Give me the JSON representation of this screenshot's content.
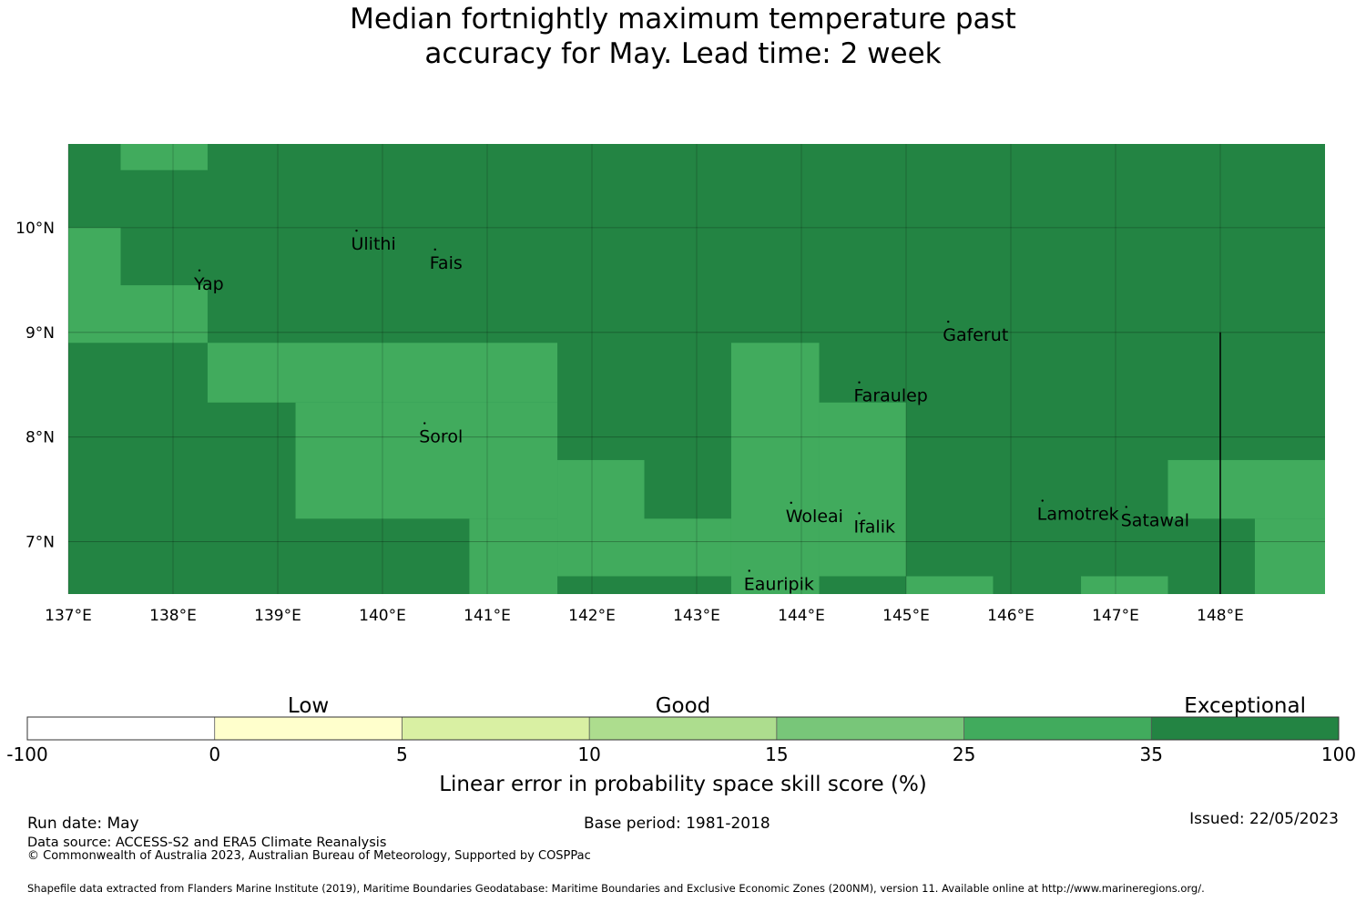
{
  "title_lines": [
    "Median fortnightly maximum temperature past",
    "accuracy for May. Lead time: 2 week"
  ],
  "map": {
    "lon_range": [
      137.0,
      149.0
    ],
    "lat_range": [
      6.5,
      10.8
    ],
    "lon_ticks": [
      {
        "value": 137,
        "label": "137°E"
      },
      {
        "value": 138,
        "label": "138°E"
      },
      {
        "value": 139,
        "label": "139°E"
      },
      {
        "value": 140,
        "label": "140°E"
      },
      {
        "value": 141,
        "label": "141°E"
      },
      {
        "value": 142,
        "label": "142°E"
      },
      {
        "value": 143,
        "label": "143°E"
      },
      {
        "value": 144,
        "label": "144°E"
      },
      {
        "value": 145,
        "label": "145°E"
      },
      {
        "value": 146,
        "label": "146°E"
      },
      {
        "value": 147,
        "label": "147°E"
      },
      {
        "value": 148,
        "label": "148°E"
      }
    ],
    "lat_ticks": [
      {
        "value": 7,
        "label": "7°N"
      },
      {
        "value": 8,
        "label": "8°N"
      },
      {
        "value": 9,
        "label": "9°N"
      },
      {
        "value": 10,
        "label": "10°N"
      }
    ],
    "grid_lines": true,
    "cells_note_classes": [
      "25-35",
      "35-100"
    ],
    "cells": [
      {
        "lon": [
          137.0,
          149.0
        ],
        "lat": [
          6.5,
          10.8
        ],
        "class": "35-100"
      },
      {
        "lon": [
          137.5,
          138.33
        ],
        "lat": [
          10.55,
          10.8
        ],
        "class": "25-35"
      },
      {
        "lon": [
          137.0,
          137.5
        ],
        "lat": [
          8.9,
          10.0
        ],
        "class": "25-35"
      },
      {
        "lon": [
          137.5,
          138.33
        ],
        "lat": [
          8.9,
          9.45
        ],
        "class": "25-35"
      },
      {
        "lon": [
          138.33,
          141.67
        ],
        "lat": [
          8.33,
          8.9
        ],
        "class": "25-35"
      },
      {
        "lon": [
          139.17,
          141.67
        ],
        "lat": [
          7.22,
          8.33
        ],
        "class": "25-35"
      },
      {
        "lon": [
          140.83,
          141.67
        ],
        "lat": [
          6.5,
          7.22
        ],
        "class": "25-35"
      },
      {
        "lon": [
          141.67,
          142.5
        ],
        "lat": [
          6.67,
          7.78
        ],
        "class": "25-35"
      },
      {
        "lon": [
          142.5,
          143.33
        ],
        "lat": [
          6.67,
          7.22
        ],
        "class": "25-35"
      },
      {
        "lon": [
          143.33,
          144.17
        ],
        "lat": [
          6.5,
          8.9
        ],
        "class": "25-35"
      },
      {
        "lon": [
          144.17,
          145.0
        ],
        "lat": [
          6.67,
          8.33
        ],
        "class": "25-35"
      },
      {
        "lon": [
          145.0,
          145.83
        ],
        "lat": [
          6.5,
          6.67
        ],
        "class": "25-35"
      },
      {
        "lon": [
          146.67,
          147.5
        ],
        "lat": [
          6.5,
          6.67
        ],
        "class": "25-35"
      },
      {
        "lon": [
          147.5,
          149.0
        ],
        "lat": [
          7.22,
          7.78
        ],
        "class": "25-35"
      },
      {
        "lon": [
          148.33,
          149.0
        ],
        "lat": [
          6.5,
          7.22
        ],
        "class": "25-35"
      }
    ],
    "boundary_line": {
      "lon": 148.0,
      "lat": [
        6.5,
        9.0
      ]
    },
    "places": [
      {
        "name": "Ulithi",
        "lon": 139.7,
        "lat": 9.85
      },
      {
        "name": "Fais",
        "lon": 140.45,
        "lat": 9.67
      },
      {
        "name": "Yap",
        "lon": 138.2,
        "lat": 9.47
      },
      {
        "name": "Gaferut",
        "lon": 145.35,
        "lat": 8.98
      },
      {
        "name": "Faraulep",
        "lon": 144.5,
        "lat": 8.4
      },
      {
        "name": "Sorol",
        "lon": 140.35,
        "lat": 8.01
      },
      {
        "name": "Woleai",
        "lon": 143.85,
        "lat": 7.25
      },
      {
        "name": "Ifalik",
        "lon": 144.5,
        "lat": 7.15
      },
      {
        "name": "Lamotrek",
        "lon": 146.25,
        "lat": 7.27
      },
      {
        "name": "Satawal",
        "lon": 147.05,
        "lat": 7.21
      },
      {
        "name": "Eauripik",
        "lon": 143.45,
        "lat": 6.6
      }
    ]
  },
  "legend": {
    "categories": [
      {
        "label": "Low",
        "position": "over 0 to 5"
      },
      {
        "label": "Good",
        "position": "over 10 to 15"
      },
      {
        "label": "Exceptional",
        "position": "over 35 to 100"
      }
    ],
    "bins": [
      {
        "from": "-100",
        "to": "0",
        "color": "#ffffff"
      },
      {
        "from": "0",
        "to": "5",
        "color": "#ffffcc"
      },
      {
        "from": "5",
        "to": "10",
        "color": "#d9f0a3"
      },
      {
        "from": "10",
        "to": "15",
        "color": "#addd8e"
      },
      {
        "from": "15",
        "to": "25",
        "color": "#78c679"
      },
      {
        "from": "25",
        "to": "35",
        "color": "#41ab5d"
      },
      {
        "from": "35",
        "to": "100",
        "color": "#238443"
      }
    ],
    "tick_labels": [
      "-100",
      "0",
      "5",
      "10",
      "15",
      "25",
      "35",
      "100"
    ],
    "axis_label": "Linear error in probability space skill score (%)"
  },
  "footer": {
    "run_date": "Run date: May",
    "base_period": "Base period: 1981-2018",
    "issued": "Issued: 22/05/2023",
    "data_source": "Data source: ACCESS-S2 and ERA5 Climate Reanalysis",
    "copyright": "© Commonwealth of Australia 2023, Australian Bureau of Meteorology, Supported by COSPPac",
    "shapefile": "Shapefile data extracted from Flanders Marine Institute (2019), Maritime Boundaries Geodatabase: Maritime Boundaries and Exclusive Economic Zones (200NM), version 11. Available online at http://www.marineregions.org/."
  }
}
